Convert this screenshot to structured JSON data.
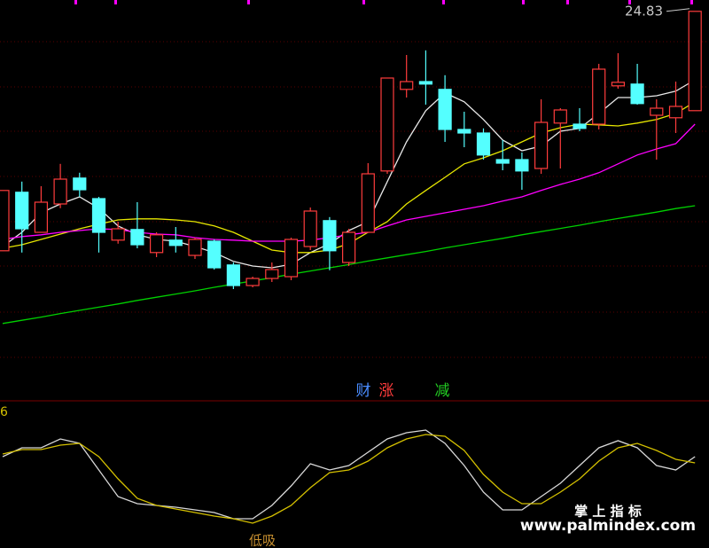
{
  "chart_data": [
    {
      "type": "candlestick",
      "ylim": [
        14.4,
        25.15
      ],
      "up_color": "#ff3c3c",
      "down_color": "#54ffff",
      "price_label": 24.83,
      "open": [
        18.08,
        19.73,
        18.6,
        19.4,
        20.13,
        19.55,
        18.38,
        18.68,
        18.03,
        18.38,
        17.95,
        18.35,
        17.68,
        17.1,
        17.3,
        17.35,
        18.2,
        18.93,
        17.75,
        18.6,
        20.33,
        22.63,
        22.85,
        22.63,
        21.5,
        21.4,
        20.65,
        20.65,
        20.4,
        21.68,
        21.65,
        21.65,
        22.73,
        22.78,
        21.9,
        21.83,
        22.03
      ],
      "high": [
        19.78,
        20.03,
        19.9,
        20.53,
        20.28,
        19.6,
        18.9,
        19.45,
        18.6,
        18.75,
        18.45,
        18.4,
        17.75,
        17.35,
        17.75,
        18.45,
        19.3,
        19.03,
        18.7,
        20.55,
        22.95,
        23.6,
        23.73,
        23.03,
        22.0,
        21.53,
        21.2,
        20.85,
        22.35,
        22.1,
        22.1,
        23.35,
        23.65,
        23.35,
        22.35,
        22.85,
        24.83
      ],
      "low": [
        18.08,
        18.03,
        18.6,
        19.28,
        19.6,
        18.03,
        18.28,
        18.15,
        17.9,
        18.03,
        17.85,
        17.55,
        17.0,
        17.05,
        17.2,
        17.25,
        18.1,
        17.53,
        17.65,
        18.6,
        20.25,
        22.4,
        22.2,
        21.15,
        21.0,
        20.65,
        20.35,
        19.8,
        20.25,
        20.4,
        21.45,
        21.5,
        22.65,
        22.2,
        20.65,
        21.4,
        22.03
      ],
      "close": [
        19.78,
        18.7,
        19.45,
        20.1,
        19.8,
        18.6,
        18.7,
        18.25,
        18.53,
        18.23,
        18.4,
        17.6,
        17.1,
        17.3,
        17.55,
        18.4,
        19.2,
        18.08,
        18.6,
        20.25,
        22.95,
        22.85,
        22.78,
        21.5,
        21.4,
        20.78,
        20.55,
        20.33,
        21.7,
        22.05,
        21.53,
        23.2,
        22.83,
        22.23,
        22.1,
        22.15,
        24.83
      ],
      "series": [
        {
          "color": "#e8e8e8",
          "values": [
            18.2,
            18.6,
            19.15,
            19.4,
            19.6,
            19.28,
            18.78,
            18.53,
            18.4,
            18.35,
            18.2,
            18.03,
            17.78,
            17.65,
            17.6,
            17.7,
            18.03,
            18.28,
            18.65,
            18.9,
            20.03,
            21.15,
            22.03,
            22.53,
            22.28,
            21.78,
            21.2,
            20.9,
            21.03,
            21.45,
            21.53,
            21.95,
            22.4,
            22.4,
            22.45,
            22.58,
            22.9
          ]
        },
        {
          "color": "#e6e600",
          "values": [
            18.15,
            18.25,
            18.4,
            18.55,
            18.7,
            18.83,
            18.95,
            18.98,
            18.98,
            18.95,
            18.9,
            18.78,
            18.6,
            18.35,
            18.1,
            18.03,
            18.03,
            18.1,
            18.28,
            18.6,
            18.9,
            19.4,
            19.78,
            20.15,
            20.53,
            20.7,
            20.9,
            21.15,
            21.4,
            21.55,
            21.65,
            21.63,
            21.6,
            21.68,
            21.78,
            21.95,
            22.28
          ]
        },
        {
          "color": "#ff00ff",
          "values": [
            18.4,
            18.48,
            18.53,
            18.6,
            18.65,
            18.7,
            18.68,
            18.6,
            18.55,
            18.53,
            18.45,
            18.4,
            18.38,
            18.35,
            18.35,
            18.35,
            18.38,
            18.45,
            18.53,
            18.6,
            18.78,
            18.95,
            19.05,
            19.15,
            19.25,
            19.35,
            19.48,
            19.6,
            19.78,
            19.95,
            20.1,
            20.28,
            20.53,
            20.78,
            20.95,
            21.1,
            21.65
          ]
        },
        {
          "color": "#00d000",
          "values": [
            16.03,
            16.12,
            16.21,
            16.31,
            16.4,
            16.49,
            16.58,
            16.68,
            16.77,
            16.86,
            16.95,
            17.05,
            17.14,
            17.23,
            17.32,
            17.42,
            17.51,
            17.6,
            17.69,
            17.79,
            17.88,
            17.97,
            18.06,
            18.16,
            18.25,
            18.34,
            18.43,
            18.53,
            18.62,
            18.71,
            18.8,
            18.9,
            18.99,
            19.08,
            19.17,
            19.27,
            19.35
          ]
        }
      ],
      "markers": [
        {
          "text": "财",
          "color": "#4a8cff"
        },
        {
          "text": "涨",
          "color": "#ff3c3c"
        },
        {
          "text": "减",
          "color": "#22cc22"
        }
      ]
    },
    {
      "type": "line",
      "ylim": [
        0,
        100
      ],
      "label": "6",
      "annotation": "低吸",
      "series": [
        {
          "color": "#d8d8d8",
          "values": [
            70.8,
            79.2,
            79.2,
            87.5,
            83.3,
            58.3,
            33.3,
            26.7,
            25,
            23.3,
            20.8,
            18.3,
            12.5,
            12.5,
            25,
            43.3,
            64.2,
            58.3,
            62.5,
            75,
            87.5,
            93.3,
            95.8,
            83.3,
            62.5,
            37.5,
            20.8,
            20.8,
            33.3,
            45.8,
            62.5,
            79.2,
            85.8,
            79.2,
            62.5,
            58.3,
            70.8
          ]
        },
        {
          "color": "#d4c000",
          "values": [
            73.3,
            77.5,
            77.5,
            81.7,
            83.3,
            70.8,
            50,
            31.7,
            25,
            21.7,
            18.3,
            15,
            12.5,
            8.3,
            15,
            25,
            41.7,
            55.8,
            58.3,
            66.7,
            79.2,
            87.5,
            91.7,
            90,
            76.7,
            54.2,
            37.5,
            26.7,
            26.7,
            37.5,
            50,
            66.7,
            79.2,
            83.3,
            76.7,
            68.3,
            65
          ]
        }
      ]
    }
  ],
  "watermark": {
    "title": "掌 上 指 标",
    "url": "www.palmindex.com"
  }
}
